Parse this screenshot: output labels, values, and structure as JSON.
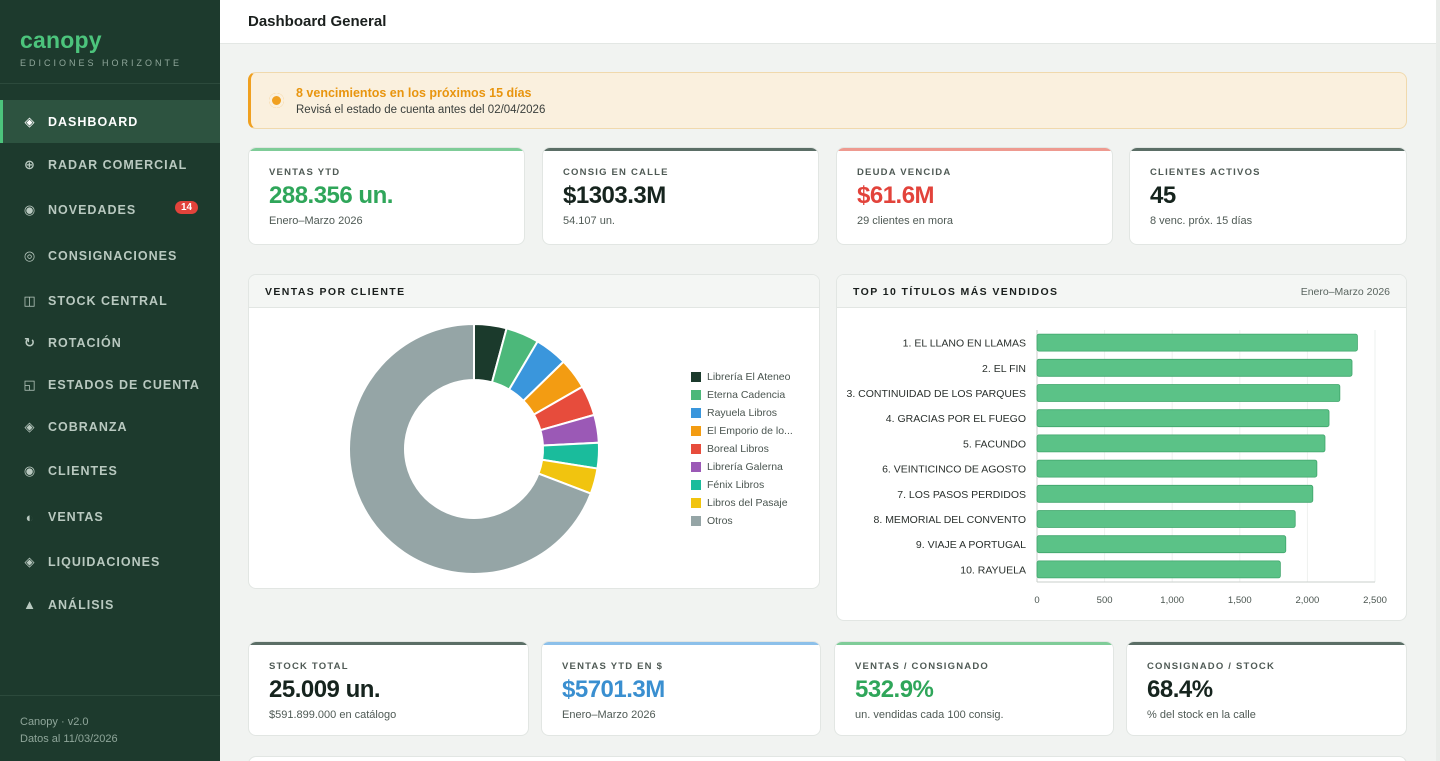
{
  "sidebar": {
    "brand": "canopy",
    "subtitle": "EDICIONES HORIZONTE",
    "items": [
      {
        "label": "DASHBOARD",
        "icon": "diamond-icon",
        "glyph": "◈"
      },
      {
        "label": "RADAR COMERCIAL",
        "icon": "radar-icon",
        "glyph": "⊕"
      },
      {
        "label": "NOVEDADES",
        "icon": "circle-dot-icon",
        "glyph": "◉",
        "badge": "14"
      },
      {
        "label": "CONSIGNACIONES",
        "icon": "ring-icon",
        "glyph": "◎"
      },
      {
        "label": "STOCK CENTRAL",
        "icon": "grid-icon",
        "glyph": "◫"
      },
      {
        "label": "ROTACIÓN",
        "icon": "rotate-icon",
        "glyph": "↻"
      },
      {
        "label": "ESTADOS DE CUENTA",
        "icon": "ledger-icon",
        "glyph": "◱"
      },
      {
        "label": "COBRANZA",
        "icon": "diamond-icon",
        "glyph": "◈"
      },
      {
        "label": "CLIENTES",
        "icon": "circle-dot-icon",
        "glyph": "◉"
      },
      {
        "label": "VENTAS",
        "icon": "half-circle-icon",
        "glyph": "◐"
      },
      {
        "label": "LIQUIDACIONES",
        "icon": "diamond-icon",
        "glyph": "◈"
      },
      {
        "label": "ANÁLISIS",
        "icon": "triangle-icon",
        "glyph": "▲"
      }
    ],
    "footer_version": "Canopy · v2.0",
    "footer_date": "Datos al 11/03/2026"
  },
  "header": {
    "title": "Dashboard General"
  },
  "alert": {
    "title": "8 vencimientos en los próximos 15 días",
    "text": "Revisá el estado de cuenta antes del 02/04/2026",
    "color": "#f0a020"
  },
  "kpis_top": [
    {
      "label": "VENTAS YTD",
      "value": "288.356 un.",
      "sub": "Enero–Marzo 2026",
      "value_color": "#2fa65a",
      "bar_color": "#7fcc98"
    },
    {
      "label": "CONSIG EN CALLE",
      "value": "$1303.3M",
      "sub": "54.107 un.",
      "value_color": "#16241e",
      "bar_color": "#5b6e66"
    },
    {
      "label": "DEUDA VENCIDA",
      "value": "$61.6M",
      "sub": "29 clientes en mora",
      "value_color": "#e2433b",
      "bar_color": "#ee9a90"
    },
    {
      "label": "CLIENTES ACTIVOS",
      "value": "45",
      "sub": "8 venc. próx. 15 días",
      "value_color": "#16241e",
      "bar_color": "#5b6e66"
    }
  ],
  "kpis_bottom": [
    {
      "label": "STOCK TOTAL",
      "value": "25.009 un.",
      "sub": "$591.899.000 en catálogo",
      "value_color": "#16241e",
      "bar_color": "#5b6e66"
    },
    {
      "label": "VENTAS YTD EN $",
      "value": "$5701.3M",
      "sub": "Enero–Marzo 2026",
      "value_color": "#3a8fd0",
      "bar_color": "#8cc0ea"
    },
    {
      "label": "VENTAS / CONSIGNADO",
      "value": "532.9%",
      "sub": "un. vendidas cada 100 consig.",
      "value_color": "#2fa65a",
      "bar_color": "#7fcc98"
    },
    {
      "label": "CONSIGNADO / STOCK",
      "value": "68.4%",
      "sub": "% del stock en la calle",
      "value_color": "#16241e",
      "bar_color": "#5b6e66"
    }
  ],
  "donut_panel": {
    "title": "VENTAS POR CLIENTE"
  },
  "bar_panel": {
    "title": "TOP 10 TÍTULOS MÁS VENDIDOS",
    "meta": "Enero–Marzo 2026"
  },
  "chart_data": [
    {
      "type": "pie",
      "title": "VENTAS POR CLIENTE",
      "categories": [
        "Librería El Ateneo",
        "Eterna Cadencia",
        "Rayuela Libros",
        "El Emporio de lo...",
        "Boreal Libros",
        "Librería Galerna",
        "Fénix Libros",
        "Libros del Pasaje",
        "Otros"
      ],
      "values": [
        4.2,
        4.3,
        4.2,
        4.0,
        3.9,
        3.6,
        3.3,
        3.3,
        69.2
      ],
      "colors": [
        "#1b3a2c",
        "#4cb87a",
        "#3a96dc",
        "#f39c12",
        "#e74c3c",
        "#9b59b6",
        "#1abc9c",
        "#f1c40f",
        "#95a5a6"
      ],
      "legend": "right"
    },
    {
      "type": "bar",
      "orientation": "horizontal",
      "title": "TOP 10 TÍTULOS MÁS VENDIDOS",
      "categories": [
        "1. EL LLANO EN LLAMAS",
        "2. EL FIN",
        "3. CONTINUIDAD DE LOS PARQUES",
        "4. GRACIAS POR EL FUEGO",
        "5. FACUNDO",
        "6. VEINTICINCO DE AGOSTO",
        "7. LOS PASOS PERDIDOS",
        "8. MEMORIAL DEL CONVENTO",
        "9. VIAJE A PORTUGAL",
        "10. RAYUELA"
      ],
      "values": [
        2370,
        2330,
        2240,
        2160,
        2130,
        2070,
        2040,
        1910,
        1840,
        1800
      ],
      "xlim": [
        0,
        2500
      ],
      "xticks": [
        "0",
        "500",
        "1,000",
        "1,500",
        "2,000",
        "2,500"
      ],
      "color": "#5bc287"
    }
  ]
}
